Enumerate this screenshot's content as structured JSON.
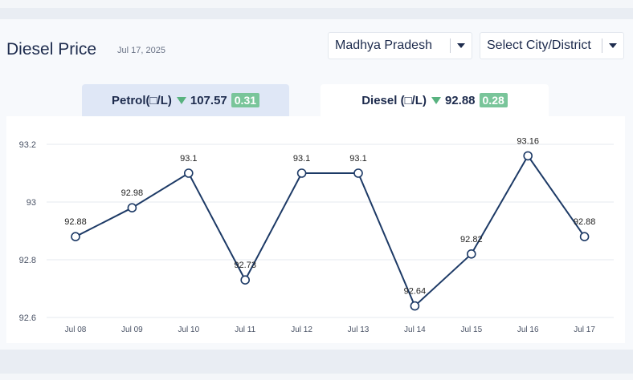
{
  "header": {
    "title": "Diesel Price",
    "date": "Jul 17, 2025",
    "state_select": "Madhya Pradesh",
    "city_select": "Select City/District"
  },
  "tabs": {
    "petrol": {
      "label": "Petrol(□/L)",
      "price": "107.57",
      "change": "0.31",
      "active": false
    },
    "diesel": {
      "label": "Diesel (□/L)",
      "price": "92.88",
      "change": "0.28",
      "active": true
    }
  },
  "colors": {
    "line": "#1d3a66",
    "down_arrow": "#58b27f",
    "badge": "#79c59a",
    "active_tab": "#ffffff",
    "inactive_tab": "#dfe7f6"
  },
  "icons": {
    "trend": "triangle-down-icon",
    "dropdown": "caret-down-icon"
  },
  "chart_data": {
    "type": "line",
    "categories": [
      "Jul 08",
      "Jul 09",
      "Jul 10",
      "Jul 11",
      "Jul 12",
      "Jul 13",
      "Jul 14",
      "Jul 15",
      "Jul 16",
      "Jul 17"
    ],
    "values": [
      92.88,
      92.98,
      93.1,
      92.73,
      93.1,
      93.1,
      92.64,
      92.82,
      93.16,
      92.88
    ],
    "data_labels": [
      "92.88",
      "92.98",
      "93.1",
      "92.73",
      "93.1",
      "93.1",
      "92.64",
      "92.82",
      "93.16",
      "92.88"
    ],
    "yticks": [
      92.6,
      92.8,
      93,
      93.2
    ],
    "ytick_labels": [
      "92.6",
      "92.8",
      "93",
      "93.2"
    ],
    "ylim": [
      92.6,
      93.2
    ],
    "grid": true,
    "legend": "none"
  }
}
